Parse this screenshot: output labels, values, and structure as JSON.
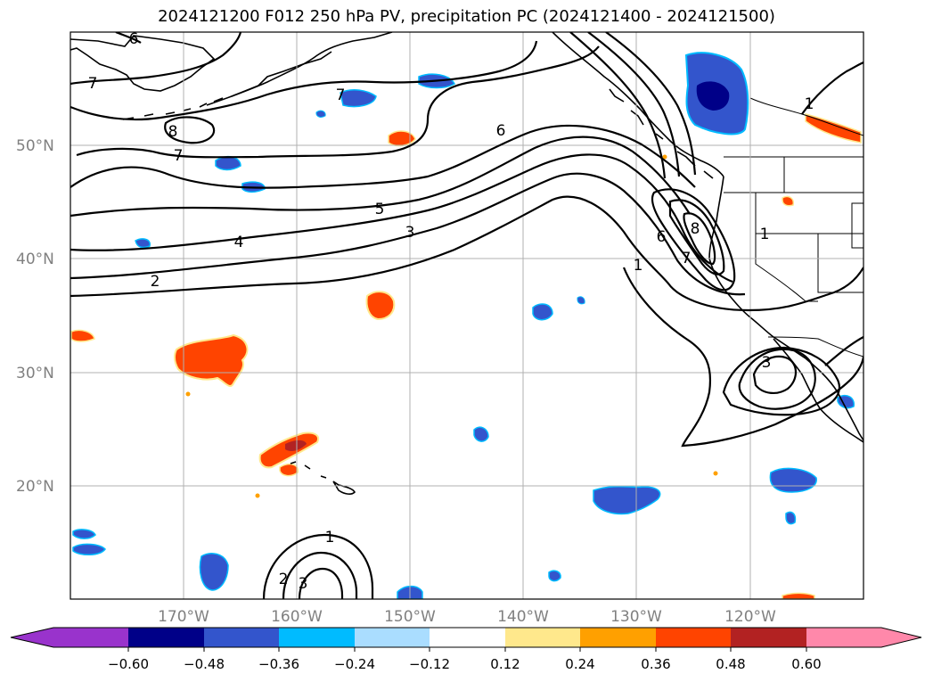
{
  "title": "2024121200 F012 250 hPa PV, precipitation PC (2024121400 - 2024121500)",
  "map": {
    "lat_labels": [
      "50°N",
      "40°N",
      "30°N",
      "20°N"
    ],
    "lon_labels": [
      "170°W",
      "160°W",
      "150°W",
      "140°W",
      "130°W",
      "120°W"
    ],
    "gridline_color": "#b0b0b0",
    "axis_label_color": "#808080",
    "contour_color": "#000000",
    "contour_labels": [
      "6",
      "7",
      "7",
      "8",
      "7",
      "6",
      "5",
      "4",
      "3",
      "2",
      "1",
      "6",
      "7",
      "8",
      "1",
      "1",
      "3",
      "1",
      "2",
      "3"
    ]
  },
  "colorbar": {
    "ticks": [
      "−0.60",
      "−0.48",
      "−0.36",
      "−0.24",
      "−0.12",
      "0.12",
      "0.24",
      "0.36",
      "0.48",
      "0.60"
    ],
    "colors": [
      "#9933cc",
      "#000088",
      "#3355cc",
      "#00bbff",
      "#aaddff",
      "#ffffff",
      "#ffe88c",
      "#ffa000",
      "#ff4400",
      "#b22222",
      "#ff88aa"
    ]
  }
}
